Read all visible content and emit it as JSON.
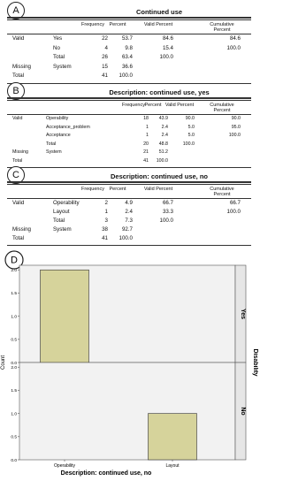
{
  "table_a": {
    "panel_label": "A",
    "title": "Continued use",
    "columns": [
      "Frequency",
      "Percent",
      "Valid Percent",
      "Cumulative Percent"
    ],
    "rows": [
      {
        "group": "Valid",
        "label": "Yes",
        "cells": [
          "22",
          "53.7",
          "84.6",
          "84.6"
        ]
      },
      {
        "label": "No",
        "cells": [
          "4",
          "9.8",
          "15.4",
          "100.0"
        ]
      },
      {
        "label": "Total",
        "cells": [
          "26",
          "63.4",
          "100.0"
        ]
      },
      {
        "group": "Missing",
        "label": "System",
        "cells": [
          "15",
          "36.6"
        ]
      },
      {
        "group": "Total",
        "cells": [
          "41",
          "100.0"
        ]
      }
    ]
  },
  "table_b": {
    "panel_label": "B",
    "title": "Description: continued use, yes",
    "columns": [
      "Frequency",
      "Percent",
      "Valid Percent",
      "Cumulative Percent"
    ],
    "rows": [
      {
        "group": "Valid",
        "label": "Operability",
        "cells": [
          "18",
          "43.9",
          "90.0",
          "90.0"
        ]
      },
      {
        "label": "Acceptance_problem",
        "cells": [
          "1",
          "2.4",
          "5.0",
          "95.0"
        ]
      },
      {
        "label": "Acceptance",
        "cells": [
          "1",
          "2.4",
          "5.0",
          "100.0"
        ]
      },
      {
        "label": "Total",
        "cells": [
          "20",
          "48.8",
          "100.0"
        ]
      },
      {
        "group": "Missing",
        "label": "System",
        "cells": [
          "21",
          "51.2"
        ]
      },
      {
        "group": "Total",
        "cells": [
          "41",
          "100.0"
        ]
      }
    ]
  },
  "table_c": {
    "panel_label": "C",
    "title": "Description: continued use, no",
    "columns": [
      "Frequency",
      "Percent",
      "Valid Percent",
      "Cumulative Percent"
    ],
    "rows": [
      {
        "group": "Valid",
        "label": "Operability",
        "cells": [
          "2",
          "4.9",
          "66.7",
          "66.7"
        ]
      },
      {
        "label": "Layout",
        "cells": [
          "1",
          "2.4",
          "33.3",
          "100.0"
        ]
      },
      {
        "label": "Total",
        "cells": [
          "3",
          "7.3",
          "100.0"
        ]
      },
      {
        "group": "Missing",
        "label": "System",
        "cells": [
          "38",
          "92.7"
        ]
      },
      {
        "group": "Total",
        "cells": [
          "41",
          "100.0"
        ]
      }
    ]
  },
  "chart_data": {
    "type": "bar",
    "panel_label": "D",
    "xlabel": "Description: continued use, no",
    "ylabel": "Count",
    "facet_title": "Disability",
    "categories": [
      "Operability",
      "Layout"
    ],
    "color": "#d6d39b",
    "ylim": [
      0,
      2.1
    ],
    "yticks": [
      {
        "value": 0,
        "label": "0.0"
      },
      0.5,
      {
        "value": 1,
        "label": "1.0"
      },
      1.5,
      {
        "value": 2,
        "label": "2.0"
      }
    ],
    "panels": [
      {
        "name": "Yes",
        "values": [
          2,
          0
        ]
      },
      {
        "name": "No",
        "values": [
          0,
          1
        ]
      }
    ]
  }
}
